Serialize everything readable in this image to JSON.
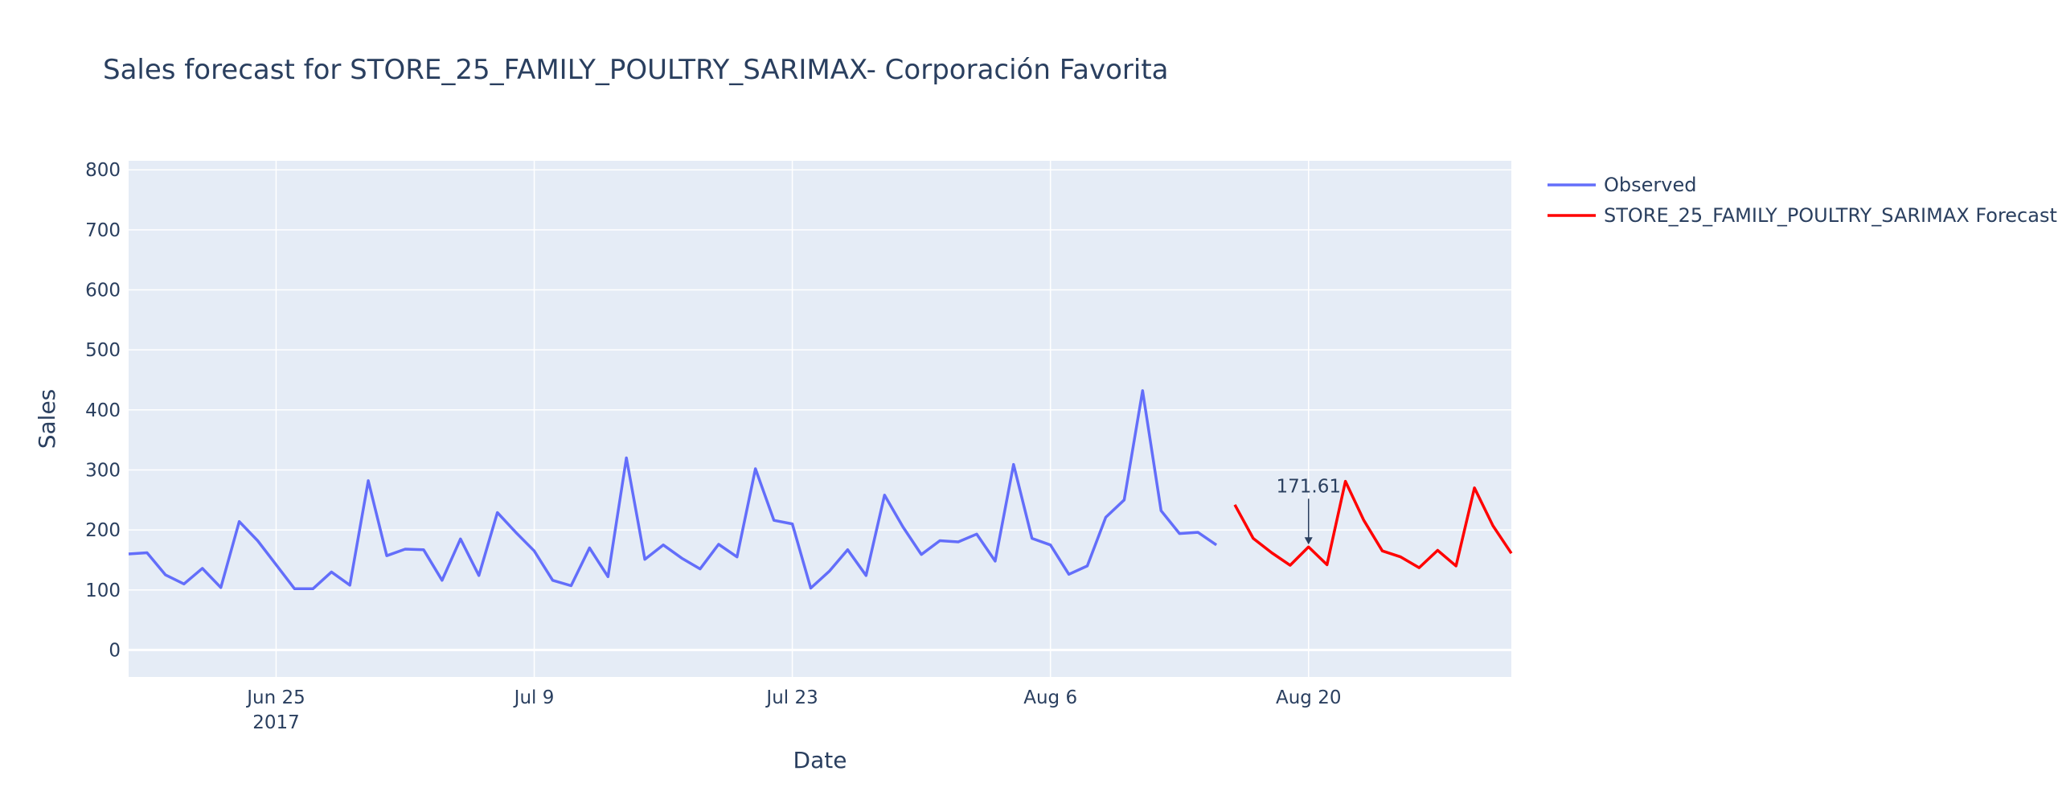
{
  "chart_data": {
    "type": "line",
    "title": "Sales forecast for STORE_25_FAMILY_POULTRY_SARIMAX- Corporación Favorita",
    "xlabel": "Date",
    "ylabel": "Sales",
    "ylim": [
      -45,
      815
    ],
    "xlim": [
      "2017-06-17",
      "2017-08-31"
    ],
    "grid": true,
    "legend_position": "top-right outside plot",
    "y_ticks": [
      0,
      100,
      200,
      300,
      400,
      500,
      600,
      700,
      800
    ],
    "x_ticks": [
      {
        "date": "2017-06-25",
        "label": "Jun 25",
        "sublabel": "2017"
      },
      {
        "date": "2017-07-09",
        "label": "Jul 9",
        "sublabel": ""
      },
      {
        "date": "2017-07-23",
        "label": "Jul 23",
        "sublabel": ""
      },
      {
        "date": "2017-08-06",
        "label": "Aug 6",
        "sublabel": ""
      },
      {
        "date": "2017-08-20",
        "label": "Aug 20",
        "sublabel": ""
      }
    ],
    "series": [
      {
        "name": "Observed",
        "color": "#636efa",
        "x": [
          "2017-06-17",
          "2017-06-18",
          "2017-06-19",
          "2017-06-20",
          "2017-06-21",
          "2017-06-22",
          "2017-06-23",
          "2017-06-24",
          "2017-06-25",
          "2017-06-26",
          "2017-06-27",
          "2017-06-28",
          "2017-06-29",
          "2017-06-30",
          "2017-07-01",
          "2017-07-02",
          "2017-07-03",
          "2017-07-04",
          "2017-07-05",
          "2017-07-06",
          "2017-07-07",
          "2017-07-08",
          "2017-07-09",
          "2017-07-10",
          "2017-07-11",
          "2017-07-12",
          "2017-07-13",
          "2017-07-14",
          "2017-07-15",
          "2017-07-16",
          "2017-07-17",
          "2017-07-18",
          "2017-07-19",
          "2017-07-20",
          "2017-07-21",
          "2017-07-22",
          "2017-07-23",
          "2017-07-24",
          "2017-07-25",
          "2017-07-26",
          "2017-07-27",
          "2017-07-28",
          "2017-07-29",
          "2017-07-30",
          "2017-07-31",
          "2017-08-01",
          "2017-08-02",
          "2017-08-03",
          "2017-08-04",
          "2017-08-05",
          "2017-08-06",
          "2017-08-07",
          "2017-08-08",
          "2017-08-09",
          "2017-08-10",
          "2017-08-11",
          "2017-08-12",
          "2017-08-13",
          "2017-08-14",
          "2017-08-15"
        ],
        "values": [
          160,
          162,
          125,
          110,
          136,
          104,
          214,
          182,
          142,
          102,
          102,
          130,
          108,
          282,
          157,
          168,
          167,
          116,
          185,
          124,
          229,
          196,
          165,
          116,
          107,
          170,
          122,
          320,
          151,
          175,
          153,
          135,
          176,
          155,
          302,
          216,
          210,
          103,
          131,
          167,
          124,
          258,
          205,
          159,
          182,
          180,
          193,
          148,
          309,
          186,
          175,
          126,
          140,
          221,
          250,
          432,
          232,
          194,
          196,
          175
        ]
      },
      {
        "name": "STORE_25_FAMILY_POULTRY_SARIMAX Forecast",
        "color": "#ff0000",
        "x": [
          "2017-08-16",
          "2017-08-17",
          "2017-08-18",
          "2017-08-19",
          "2017-08-20",
          "2017-08-21",
          "2017-08-22",
          "2017-08-23",
          "2017-08-24",
          "2017-08-25",
          "2017-08-26",
          "2017-08-27",
          "2017-08-28",
          "2017-08-29",
          "2017-08-30",
          "2017-08-31"
        ],
        "values": [
          242,
          186,
          162,
          141,
          171.61,
          142,
          281,
          216,
          165,
          155,
          137,
          166,
          140,
          270,
          207,
          161
        ]
      }
    ],
    "annotations": [
      {
        "x": "2017-08-20",
        "y": 171.61,
        "text": "171.61",
        "arrow": true
      }
    ]
  }
}
